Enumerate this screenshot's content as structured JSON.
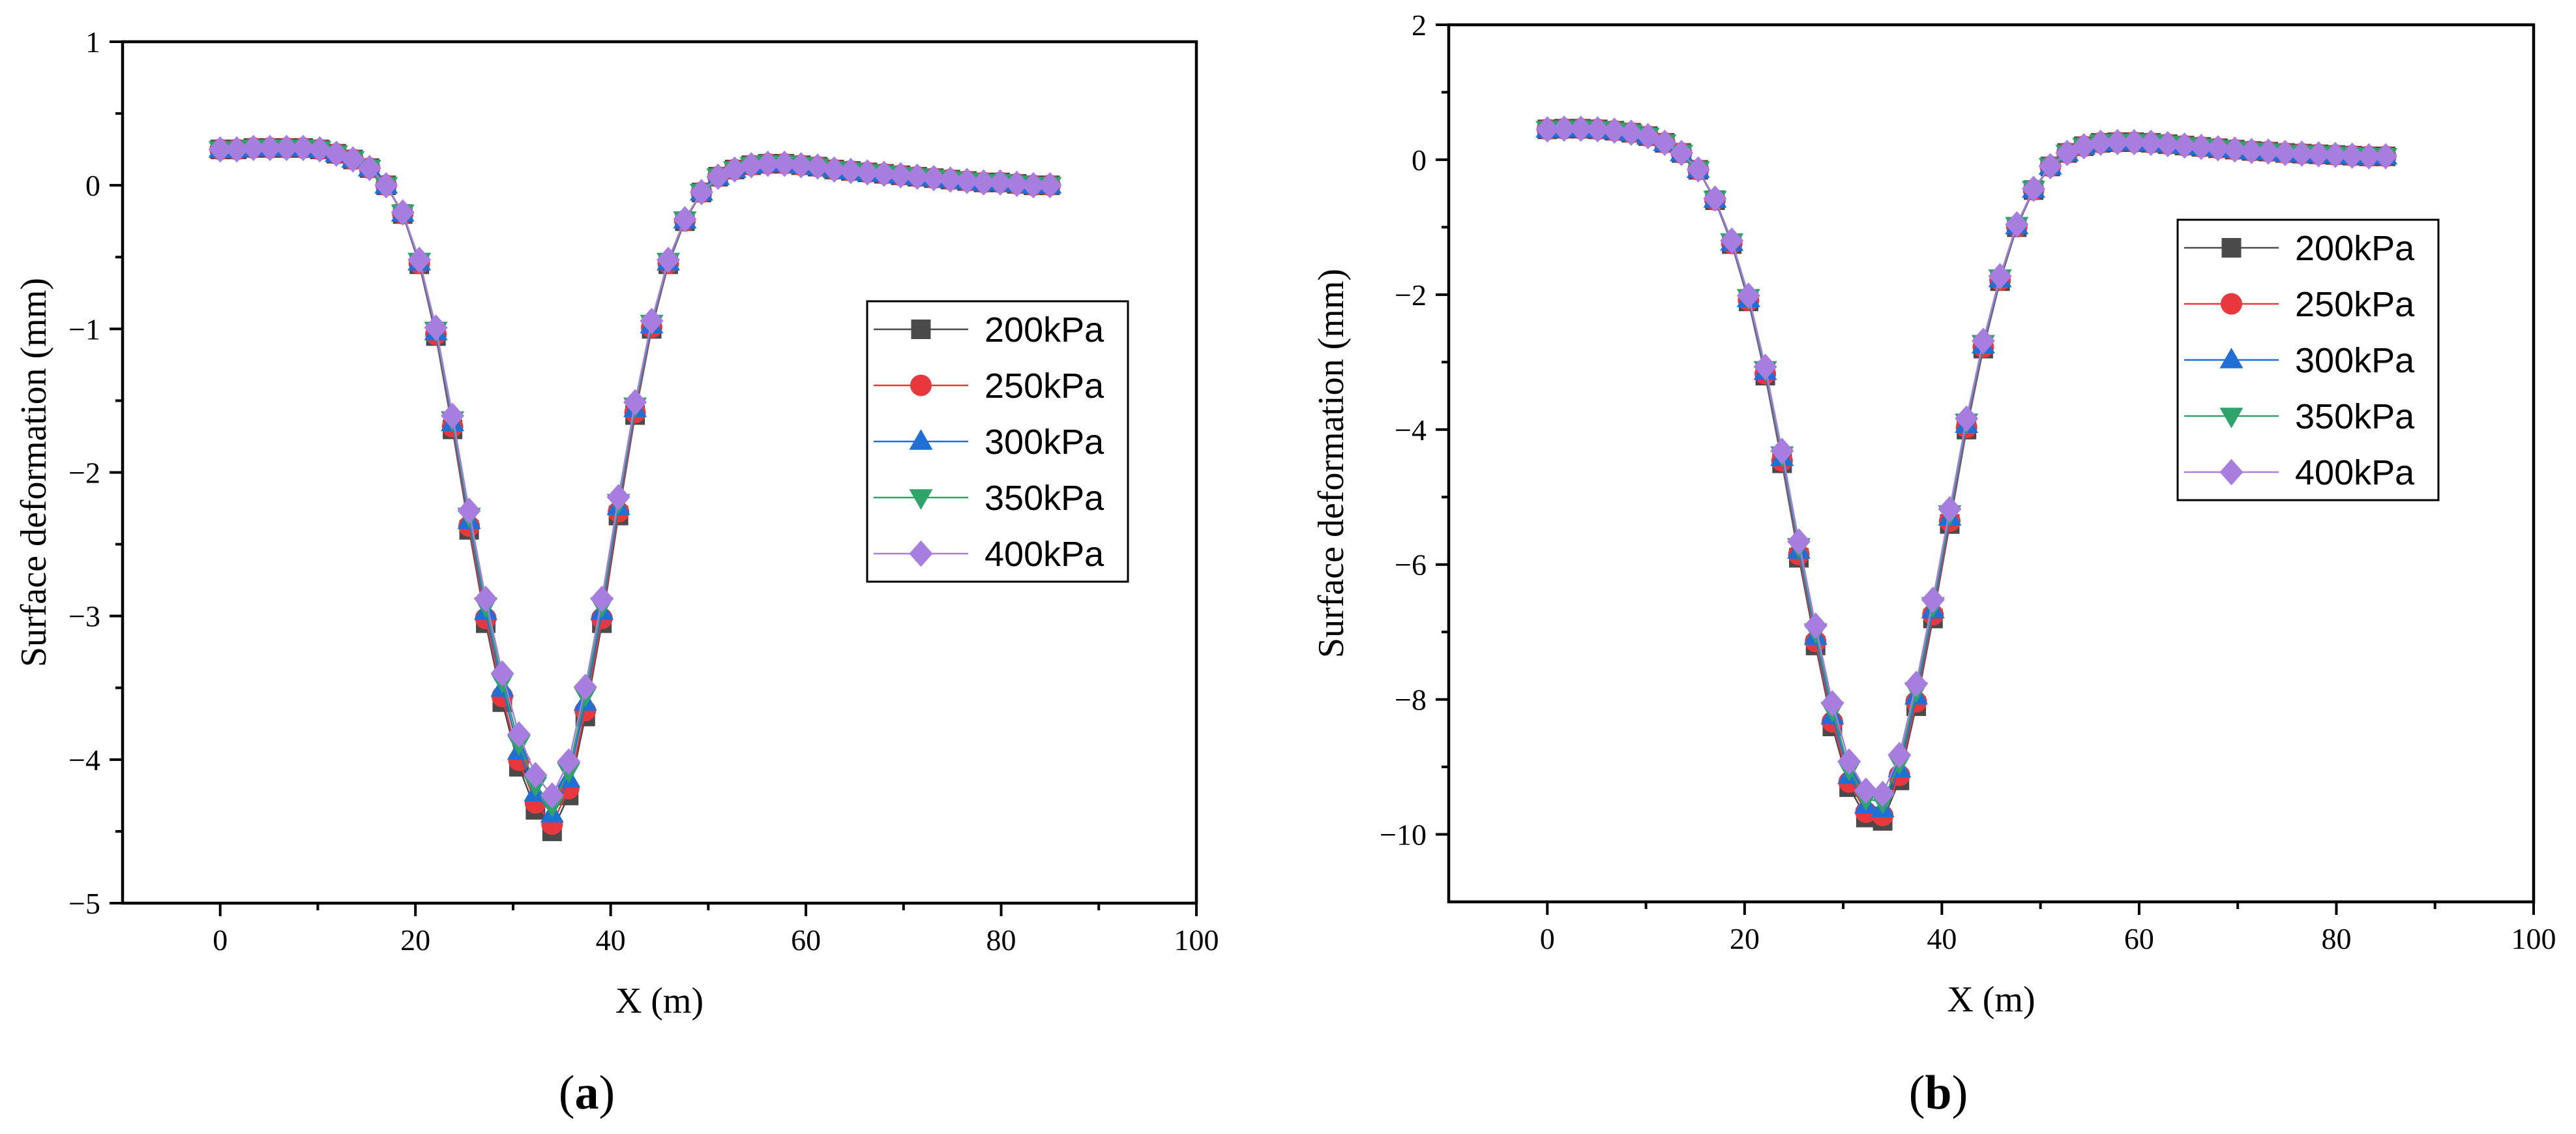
{
  "chart_data": [
    {
      "panel": "a",
      "panel_label": "(a)",
      "type": "line",
      "xlabel": "X (m)",
      "ylabel": "Surface deformation (mm)",
      "xlim": [
        -10,
        100
      ],
      "ylim": [
        -5,
        1
      ],
      "xticks": [
        0,
        20,
        40,
        60,
        80,
        100
      ],
      "yticks": [
        1,
        0,
        -1,
        -2,
        -3,
        -4,
        -5
      ],
      "ytick_labels": [
        "1",
        "0",
        "−1",
        "−2",
        "−3",
        "−4",
        "−5"
      ],
      "legend_position": "right-middle",
      "x": [
        0,
        1.7,
        3.4,
        5.1,
        6.8,
        8.5,
        10.2,
        11.9,
        13.6,
        15.3,
        17,
        18.7,
        20.4,
        22.1,
        23.8,
        25.5,
        27.2,
        28.9,
        30.6,
        32.3,
        34,
        35.7,
        37.4,
        39.1,
        40.8,
        42.5,
        44.2,
        45.9,
        47.6,
        49.3,
        51,
        52.7,
        54.4,
        56.1,
        57.8,
        59.5,
        61.2,
        62.9,
        64.6,
        66.3,
        68,
        69.7,
        71.4,
        73.1,
        74.8,
        76.5,
        78.2,
        79.9,
        81.6,
        83.3,
        85
      ],
      "series": [
        {
          "name": "200kPa",
          "color": "#4a4a4a",
          "marker": "square",
          "minimum": -4.5
        },
        {
          "name": "250kPa",
          "color": "#e8383d",
          "marker": "circle",
          "minimum": -4.45
        },
        {
          "name": "300kPa",
          "color": "#1f6fd6",
          "marker": "triangle-up",
          "minimum": -4.38
        },
        {
          "name": "350kPa",
          "color": "#2ea36a",
          "marker": "triangle-down",
          "minimum": -4.32
        },
        {
          "name": "400kPa",
          "color": "#a77ee0",
          "marker": "diamond",
          "minimum": -4.25
        }
      ],
      "base_profile": [
        0.25,
        0.25,
        0.26,
        0.26,
        0.26,
        0.26,
        0.25,
        0.22,
        0.18,
        0.12,
        0.0,
        -0.2,
        -0.55,
        -1.05,
        -1.7,
        -2.4,
        -3.05,
        -3.6,
        -4.05,
        -4.35,
        -4.5,
        -4.25,
        -3.7,
        -3.05,
        -2.3,
        -1.6,
        -1.0,
        -0.55,
        -0.25,
        -0.05,
        0.06,
        0.11,
        0.14,
        0.15,
        0.15,
        0.14,
        0.13,
        0.11,
        0.1,
        0.09,
        0.08,
        0.07,
        0.06,
        0.05,
        0.04,
        0.03,
        0.02,
        0.02,
        0.01,
        0.0,
        0.0
      ]
    },
    {
      "panel": "b",
      "panel_label": "(b)",
      "type": "line",
      "xlabel": "X (m)",
      "ylabel": "Surface deformation (mm)",
      "xlim": [
        -10,
        100
      ],
      "ylim": [
        -11,
        2
      ],
      "xticks": [
        0,
        20,
        40,
        60,
        80,
        100
      ],
      "yticks": [
        2,
        0,
        -2,
        -4,
        -6,
        -8,
        -10
      ],
      "ytick_labels": [
        "2",
        "0",
        "−2",
        "−4",
        "−6",
        "−8",
        "−10"
      ],
      "legend_position": "right-upper",
      "x": [
        0,
        1.7,
        3.4,
        5.1,
        6.8,
        8.5,
        10.2,
        11.9,
        13.6,
        15.3,
        17,
        18.7,
        20.4,
        22.1,
        23.8,
        25.5,
        27.2,
        28.9,
        30.6,
        32.3,
        34,
        35.7,
        37.4,
        39.1,
        40.8,
        42.5,
        44.2,
        45.9,
        47.6,
        49.3,
        51,
        52.7,
        54.4,
        56.1,
        57.8,
        59.5,
        61.2,
        62.9,
        64.6,
        66.3,
        68,
        69.7,
        71.4,
        73.1,
        74.8,
        76.5,
        78.2,
        79.9,
        81.6,
        83.3,
        85
      ],
      "series": [
        {
          "name": "200kPa",
          "color": "#4a4a4a",
          "marker": "square",
          "minimum": -9.8
        },
        {
          "name": "250kPa",
          "color": "#e8383d",
          "marker": "circle",
          "minimum": -9.72
        },
        {
          "name": "300kPa",
          "color": "#1f6fd6",
          "marker": "triangle-up",
          "minimum": -9.62
        },
        {
          "name": "350kPa",
          "color": "#2ea36a",
          "marker": "triangle-down",
          "minimum": -9.52
        },
        {
          "name": "400kPa",
          "color": "#a77ee0",
          "marker": "diamond",
          "minimum": -9.4
        }
      ],
      "base_profile": [
        0.45,
        0.46,
        0.46,
        0.45,
        0.43,
        0.4,
        0.35,
        0.25,
        0.1,
        -0.15,
        -0.6,
        -1.25,
        -2.1,
        -3.2,
        -4.5,
        -5.9,
        -7.2,
        -8.4,
        -9.3,
        -9.75,
        -9.8,
        -9.2,
        -8.1,
        -6.8,
        -5.4,
        -4.0,
        -2.8,
        -1.8,
        -1.0,
        -0.45,
        -0.1,
        0.1,
        0.2,
        0.25,
        0.26,
        0.26,
        0.25,
        0.23,
        0.21,
        0.19,
        0.17,
        0.15,
        0.13,
        0.12,
        0.1,
        0.09,
        0.08,
        0.07,
        0.06,
        0.05,
        0.05
      ]
    }
  ]
}
